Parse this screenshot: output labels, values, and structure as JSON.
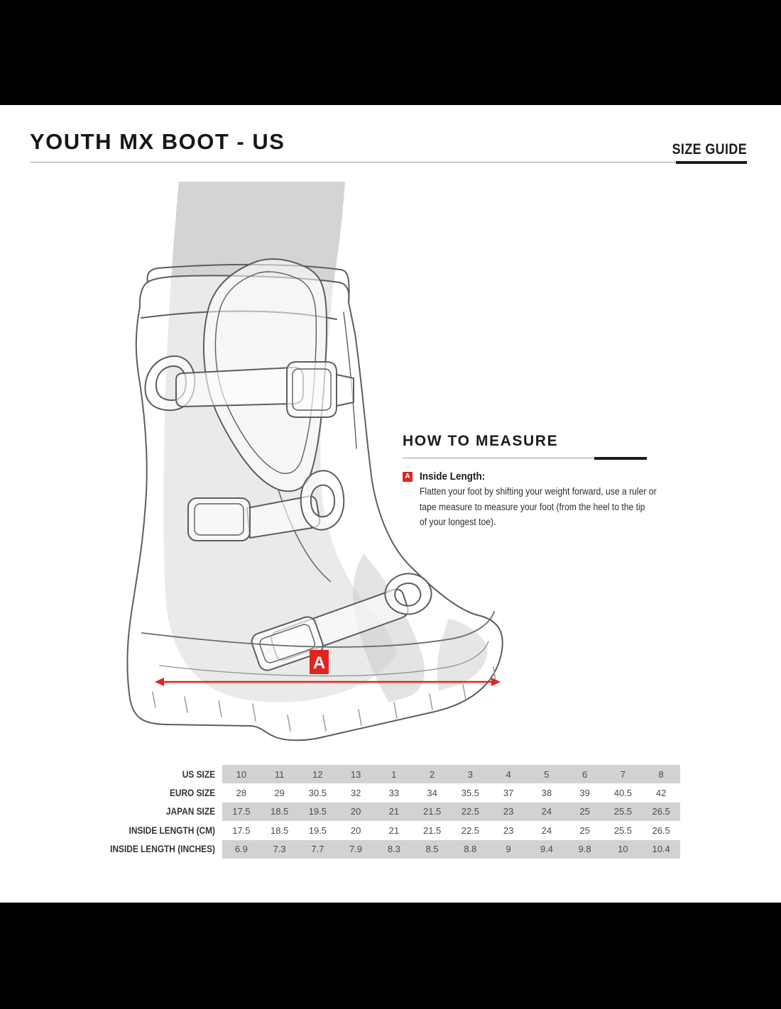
{
  "header": {
    "title": "YOUTH MX BOOT - US",
    "size_guide_label": "SIZE GUIDE"
  },
  "how_to_measure": {
    "heading": "HOW TO MEASURE",
    "marker": "A",
    "label": "Inside Length:",
    "description_lines": [
      "Flatten your foot by shifting your weight forward, use a ruler or",
      "tape measure to measure your foot (from the heel to the tip",
      "of your longest toe)."
    ]
  },
  "diagram": {
    "marker_label": "A",
    "subject": "youth-mx-boot-side-view"
  },
  "size_table": {
    "rows": [
      {
        "label": "US SIZE",
        "shaded": true,
        "values": [
          "10",
          "11",
          "12",
          "13",
          "1",
          "2",
          "3",
          "4",
          "5",
          "6",
          "7",
          "8"
        ]
      },
      {
        "label": "EURO SIZE",
        "shaded": false,
        "values": [
          "28",
          "29",
          "30.5",
          "32",
          "33",
          "34",
          "35.5",
          "37",
          "38",
          "39",
          "40.5",
          "42"
        ]
      },
      {
        "label": "JAPAN SIZE",
        "shaded": true,
        "values": [
          "17.5",
          "18.5",
          "19.5",
          "20",
          "21",
          "21.5",
          "22.5",
          "23",
          "24",
          "25",
          "25.5",
          "26.5"
        ]
      },
      {
        "label": "INSIDE LENGTH (CM)",
        "shaded": false,
        "values": [
          "17.5",
          "18.5",
          "19.5",
          "20",
          "21",
          "21.5",
          "22.5",
          "23",
          "24",
          "25",
          "25.5",
          "26.5"
        ]
      },
      {
        "label": "INSIDE LENGTH (INCHES)",
        "shaded": true,
        "values": [
          "6.9",
          "7.3",
          "7.7",
          "7.9",
          "8.3",
          "8.5",
          "8.8",
          "9",
          "9.4",
          "9.8",
          "10",
          "10.4"
        ]
      }
    ]
  },
  "chart_data": {
    "type": "table",
    "title": "YOUTH MX BOOT - US size guide",
    "row_labels": [
      "US SIZE",
      "EURO SIZE",
      "JAPAN SIZE",
      "INSIDE LENGTH (CM)",
      "INSIDE LENGTH (INCHES)"
    ],
    "rows": [
      [
        "10",
        "11",
        "12",
        "13",
        "1",
        "2",
        "3",
        "4",
        "5",
        "6",
        "7",
        "8"
      ],
      [
        "28",
        "29",
        "30.5",
        "32",
        "33",
        "34",
        "35.5",
        "37",
        "38",
        "39",
        "40.5",
        "42"
      ],
      [
        "17.5",
        "18.5",
        "19.5",
        "20",
        "21",
        "21.5",
        "22.5",
        "23",
        "24",
        "25",
        "25.5",
        "26.5"
      ],
      [
        "17.5",
        "18.5",
        "19.5",
        "20",
        "21",
        "21.5",
        "22.5",
        "23",
        "24",
        "25",
        "25.5",
        "26.5"
      ],
      [
        "6.9",
        "7.3",
        "7.7",
        "7.9",
        "8.3",
        "8.5",
        "8.8",
        "9",
        "9.4",
        "9.8",
        "10",
        "10.4"
      ]
    ]
  },
  "colors": {
    "accent_red": "#e2231e",
    "table_band_gray": "#d2d2d2",
    "leg_gray": "#d4d4d4",
    "ink": "#1b1b1b",
    "letterbox": "#000000"
  }
}
